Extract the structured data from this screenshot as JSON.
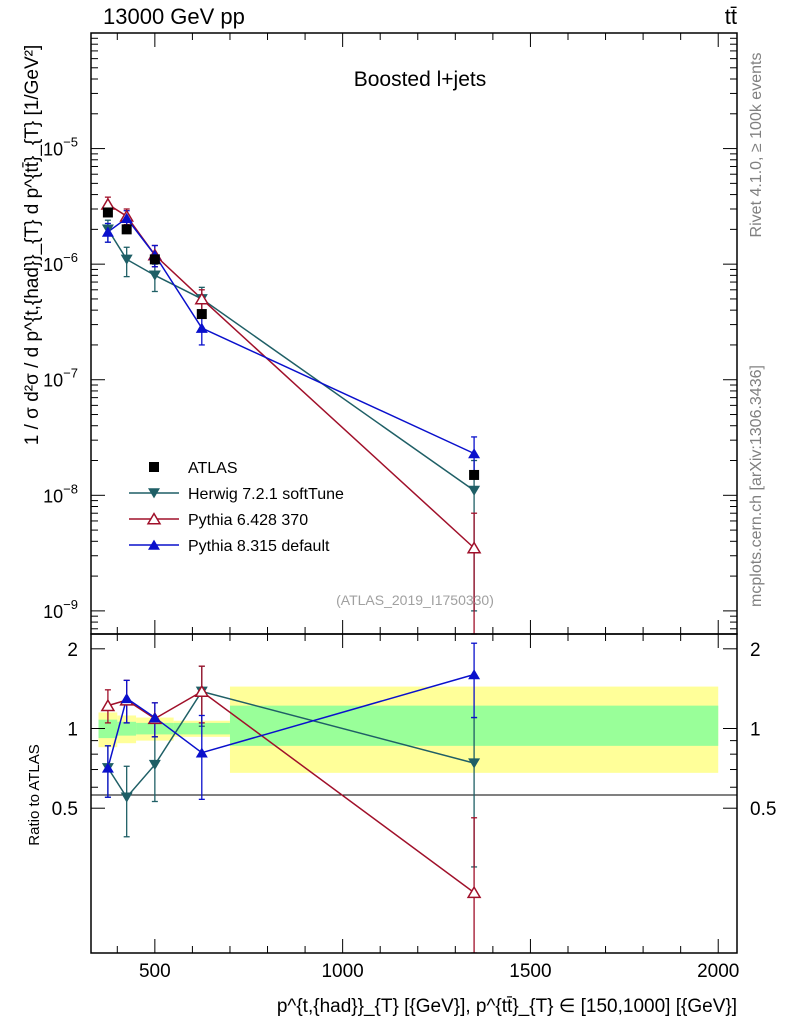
{
  "header": {
    "left": "13000 GeV pp",
    "right": "tt̄"
  },
  "side_labels": {
    "rivet": "Rivet 4.1.0, ≥ 100k events",
    "mcplots": "mcplots.cern.ch [arXiv:1306.3436]"
  },
  "chart_data": {
    "type": "line",
    "title": "Boosted l+jets",
    "watermark": "(ATLAS_2019_I1750330)",
    "xlabel": "p^{t,{had}}_{T} [{GeV}], p^{tt̄}_{T} ∈ [150,1000] [{GeV}]",
    "ylabel_main": "1 / σ d²σ / d p^{t,{had}}_{T} d p^{tt̄}_{T} [1/GeV²]",
    "ylabel_ratio": "Ratio to ATLAS",
    "xlim": [
      330,
      2050
    ],
    "ylim_main_log": [
      -9.2,
      -4.0
    ],
    "ylim_ratio_log": [
      -0.848,
      0.357
    ],
    "x_ticks": [
      500,
      1000,
      1500,
      2000
    ],
    "y_ticks_main": [
      {
        "exp": -5,
        "label": "10^-5"
      },
      {
        "exp": -6,
        "label": "10^-6"
      },
      {
        "exp": -7,
        "label": "10^-7"
      },
      {
        "exp": -8,
        "label": "10^-8"
      },
      {
        "exp": -9,
        "label": "10^-9"
      }
    ],
    "y_ticks_ratio": [
      {
        "value": 2,
        "label": "2"
      },
      {
        "value": 1,
        "label": "1"
      },
      {
        "value": 0.5,
        "label": "0.5"
      }
    ],
    "bands": [
      {
        "x0": 350,
        "x1": 400,
        "green": [
          0.92,
          1.08
        ],
        "yellow": [
          0.85,
          1.15
        ]
      },
      {
        "x0": 400,
        "x1": 450,
        "green": [
          0.94,
          1.06
        ],
        "yellow": [
          0.88,
          1.12
        ]
      },
      {
        "x0": 450,
        "x1": 550,
        "green": [
          0.95,
          1.05
        ],
        "yellow": [
          0.9,
          1.1
        ]
      },
      {
        "x0": 550,
        "x1": 700,
        "green": [
          0.95,
          1.05
        ],
        "yellow": [
          0.93,
          1.07
        ]
      },
      {
        "x0": 700,
        "x1": 2000,
        "green": [
          0.86,
          1.22
        ],
        "yellow": [
          0.68,
          1.44
        ]
      }
    ],
    "legend": [
      {
        "key": "data",
        "label": "ATLAS"
      },
      {
        "key": "herwig",
        "label": "Herwig 7.2.1 softTune"
      },
      {
        "key": "pythia6",
        "label": "Pythia 6.428 370"
      },
      {
        "key": "pythia8",
        "label": "Pythia 8.315 default"
      }
    ],
    "data": {
      "name": "ATLAS",
      "x": [
        375,
        425,
        500,
        625,
        1350
      ],
      "y": [
        2.8e-06,
        2e-06,
        1.1e-06,
        3.7e-07,
        1.5e-08
      ]
    },
    "series": [
      {
        "key": "herwig",
        "name": "Herwig 7.2.1 softTune",
        "color": "#1f5f66",
        "marker": "tri-down",
        "x": [
          375,
          425,
          500,
          625,
          1350
        ],
        "y": [
          2e-06,
          1.1e-06,
          8e-07,
          5e-07,
          1.1e-08
        ],
        "err_lo": [
          1.55e-06,
          7.8e-07,
          5.8e-07,
          3.7e-07,
          1e-09
        ],
        "err_hi": [
          2.4e-06,
          1.4e-06,
          1e-06,
          6.3e-07,
          2e-08
        ],
        "ratio": [
          0.71,
          0.55,
          0.73,
          1.38,
          0.74
        ],
        "ratio_lo": [
          0.55,
          0.39,
          0.53,
          1.02,
          0.3
        ],
        "ratio_hi": [
          0.86,
          0.72,
          0.93,
          1.72,
          1.1
        ]
      },
      {
        "key": "pythia6",
        "name": "Pythia 6.428 370",
        "color": "#a0102a",
        "marker": "tri-up-open",
        "x": [
          375,
          425,
          500,
          625,
          1350
        ],
        "y": [
          3.3e-06,
          2.6e-06,
          1.2e-06,
          5e-07,
          3.5e-09
        ],
        "err_lo": [
          2.9e-06,
          2.2e-06,
          9.5e-07,
          4e-07,
          1e-10
        ],
        "err_hi": [
          3.8e-06,
          3e-06,
          1.45e-06,
          6e-07,
          7e-09
        ],
        "ratio": [
          1.22,
          1.28,
          1.09,
          1.38,
          0.24
        ],
        "ratio_lo": [
          1.05,
          1.05,
          0.93,
          1.05,
          0.02
        ],
        "ratio_hi": [
          1.4,
          1.52,
          1.25,
          1.72,
          0.46
        ]
      },
      {
        "key": "pythia8",
        "name": "Pythia 8.315 default",
        "color": "#0a10cc",
        "marker": "tri-up",
        "x": [
          375,
          425,
          500,
          625,
          1350
        ],
        "y": [
          1.9e-06,
          2.5e-06,
          1.2e-06,
          2.8e-07,
          2.3e-08
        ],
        "err_lo": [
          1.55e-06,
          2.1e-06,
          9.5e-07,
          2e-07,
          1.4e-08
        ],
        "err_hi": [
          2.25e-06,
          2.9e-06,
          1.45e-06,
          3.6e-07,
          3.2e-08
        ],
        "ratio": [
          0.71,
          1.3,
          1.1,
          0.81,
          1.6
        ],
        "ratio_lo": [
          0.55,
          1.05,
          0.93,
          0.54,
          1.1
        ],
        "ratio_hi": [
          0.86,
          1.52,
          1.25,
          1.12,
          2.1
        ]
      }
    ]
  }
}
